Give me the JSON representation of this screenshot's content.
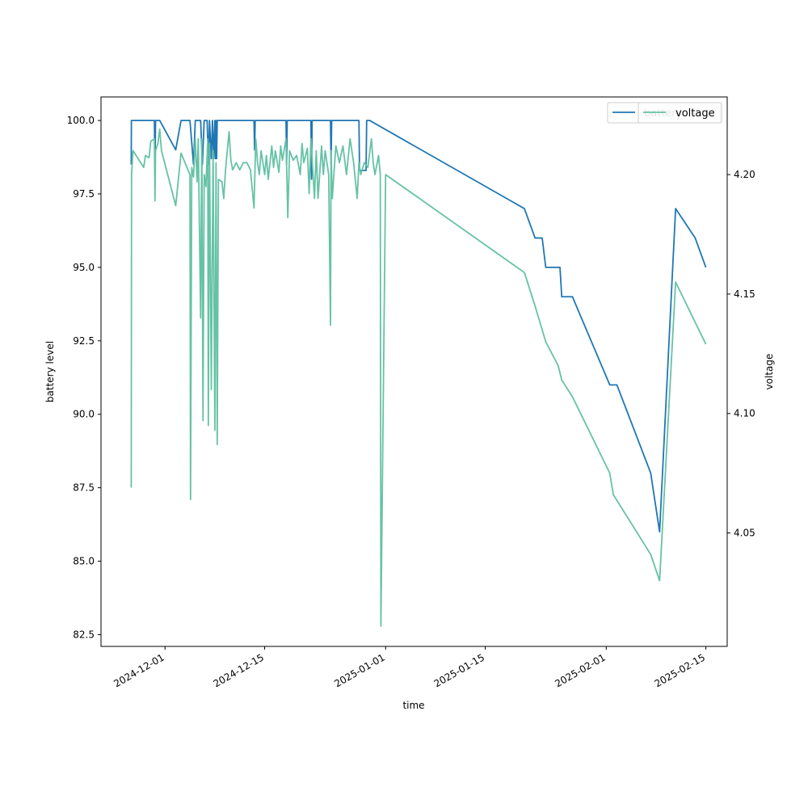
{
  "chart_data": {
    "type": "line",
    "xlabel": "time",
    "ylabel": "battery level",
    "ylabel_right": "voltage",
    "x_range": [
      "2024-11-22",
      "2025-02-18"
    ],
    "ylim": [
      82.1,
      100.8
    ],
    "ylim_right": [
      4.0025,
      4.2325
    ],
    "x_ticks": [
      "2024-12-01",
      "2024-12-15",
      "2025-01-01",
      "2025-01-15",
      "2025-02-01",
      "2025-02-15"
    ],
    "y_ticks": [
      82.5,
      85.0,
      87.5,
      90.0,
      92.5,
      95.0,
      97.5,
      100.0
    ],
    "y_ticks_right": [
      4.05,
      4.1,
      4.15,
      4.2
    ],
    "grid": false,
    "legend_position": "top-right",
    "series": [
      {
        "name": "battery",
        "axis": "left",
        "color": "#1f77b4",
        "points": [
          [
            "2024-11-26T06:00",
            98.5
          ],
          [
            "2024-11-26T06:30",
            100.0
          ],
          [
            "2024-11-29T12:00",
            100.0
          ],
          [
            "2024-11-29T14:00",
            98.5
          ],
          [
            "2024-11-29T16:00",
            100.0
          ],
          [
            "2024-11-30T06:00",
            100.0
          ],
          [
            "2024-12-02T12:00",
            99.0
          ],
          [
            "2024-12-03T06:00",
            100.0
          ],
          [
            "2024-12-04T12:00",
            100.0
          ],
          [
            "2024-12-05T00:00",
            98.5
          ],
          [
            "2024-12-05T06:00",
            100.0
          ],
          [
            "2024-12-06T00:00",
            100.0
          ],
          [
            "2024-12-06T06:00",
            98.5
          ],
          [
            "2024-12-06T12:00",
            100.0
          ],
          [
            "2024-12-06T22:00",
            100.0
          ],
          [
            "2024-12-07T02:00",
            98.5
          ],
          [
            "2024-12-07T06:00",
            100.0
          ],
          [
            "2024-12-07T12:00",
            98.7
          ],
          [
            "2024-12-07T16:00",
            100.0
          ],
          [
            "2024-12-07T20:00",
            98.7
          ],
          [
            "2024-12-08T00:00",
            100.0
          ],
          [
            "2024-12-08T02:00",
            98.7
          ],
          [
            "2024-12-08T04:00",
            100.0
          ],
          [
            "2024-12-08T06:00",
            98.7
          ],
          [
            "2024-12-08T08:00",
            100.0
          ],
          [
            "2024-12-13T12:00",
            100.0
          ],
          [
            "2024-12-13T14:00",
            99.0
          ],
          [
            "2024-12-13T16:00",
            100.0
          ],
          [
            "2024-12-18T00:00",
            100.0
          ],
          [
            "2024-12-18T02:00",
            98.5
          ],
          [
            "2024-12-18T04:00",
            100.0
          ],
          [
            "2024-12-21T12:00",
            100.0
          ],
          [
            "2024-12-21T14:00",
            98.0
          ],
          [
            "2024-12-21T16:00",
            100.0
          ],
          [
            "2024-12-24T06:00",
            100.0
          ],
          [
            "2024-12-24T08:00",
            98.5
          ],
          [
            "2024-12-24T10:00",
            100.0
          ],
          [
            "2024-12-28T06:00",
            100.0
          ],
          [
            "2024-12-28T08:00",
            98.3
          ],
          [
            "2024-12-29T06:00",
            98.3
          ],
          [
            "2024-12-29T08:00",
            100.0
          ],
          [
            "2024-12-29T18:00",
            100.0
          ],
          [
            "2025-01-20T12:00",
            97.0
          ],
          [
            "2025-01-22T00:00",
            96.0
          ],
          [
            "2025-01-23T00:00",
            96.0
          ],
          [
            "2025-01-23T12:00",
            95.0
          ],
          [
            "2025-01-25T12:00",
            95.0
          ],
          [
            "2025-01-25T18:00",
            94.0
          ],
          [
            "2025-01-27T06:00",
            94.0
          ],
          [
            "2025-02-01T12:00",
            91.0
          ],
          [
            "2025-02-02T12:00",
            91.0
          ],
          [
            "2025-02-07T06:00",
            88.0
          ],
          [
            "2025-02-08T12:00",
            86.0
          ],
          [
            "2025-02-10T18:00",
            97.0
          ],
          [
            "2025-02-13T12:00",
            96.0
          ],
          [
            "2025-02-15T00:00",
            95.0
          ]
        ]
      },
      {
        "name": "voltage",
        "axis": "right",
        "color": "#66c2a5",
        "points": [
          [
            "2024-11-26T06:00",
            4.069
          ],
          [
            "2024-11-26T07:00",
            4.2
          ],
          [
            "2024-11-26T12:00",
            4.21
          ],
          [
            "2024-11-28T00:00",
            4.203
          ],
          [
            "2024-11-28T06:00",
            4.208
          ],
          [
            "2024-11-28T18:00",
            4.207
          ],
          [
            "2024-11-29T00:00",
            4.214
          ],
          [
            "2024-11-29T12:00",
            4.215
          ],
          [
            "2024-11-29T14:00",
            4.189
          ],
          [
            "2024-11-29T16:00",
            4.21
          ],
          [
            "2024-11-30T00:00",
            4.213
          ],
          [
            "2024-11-30T06:00",
            4.219
          ],
          [
            "2024-11-30T12:00",
            4.21
          ],
          [
            "2024-12-02T12:00",
            4.187
          ],
          [
            "2024-12-03T06:00",
            4.209
          ],
          [
            "2024-12-04T12:00",
            4.2
          ],
          [
            "2024-12-04T14:00",
            4.064
          ],
          [
            "2024-12-04T18:00",
            4.203
          ],
          [
            "2024-12-05T00:00",
            4.199
          ],
          [
            "2024-12-05T06:00",
            4.215
          ],
          [
            "2024-12-05T12:00",
            4.197
          ],
          [
            "2024-12-05T16:00",
            4.215
          ],
          [
            "2024-12-06T00:00",
            4.14
          ],
          [
            "2024-12-06T04:00",
            4.215
          ],
          [
            "2024-12-06T08:00",
            4.097
          ],
          [
            "2024-12-06T12:00",
            4.2
          ],
          [
            "2024-12-06T18:00",
            4.195
          ],
          [
            "2024-12-07T00:00",
            4.215
          ],
          [
            "2024-12-07T02:00",
            4.095
          ],
          [
            "2024-12-07T06:00",
            4.213
          ],
          [
            "2024-12-07T12:00",
            4.11
          ],
          [
            "2024-12-07T18:00",
            4.21
          ],
          [
            "2024-12-08T00:00",
            4.093
          ],
          [
            "2024-12-08T04:00",
            4.205
          ],
          [
            "2024-12-08T08:00",
            4.087
          ],
          [
            "2024-12-08T12:00",
            4.198
          ],
          [
            "2024-12-09T00:00",
            4.197
          ],
          [
            "2024-12-09T06:00",
            4.19
          ],
          [
            "2024-12-09T12:00",
            4.202
          ],
          [
            "2024-12-10T00:00",
            4.218
          ],
          [
            "2024-12-10T06:00",
            4.206
          ],
          [
            "2024-12-10T12:00",
            4.202
          ],
          [
            "2024-12-11T00:00",
            4.205
          ],
          [
            "2024-12-11T12:00",
            4.202
          ],
          [
            "2024-12-12T00:00",
            4.205
          ],
          [
            "2024-12-12T12:00",
            4.205
          ],
          [
            "2024-12-13T00:00",
            4.202
          ],
          [
            "2024-12-13T12:00",
            4.186
          ],
          [
            "2024-12-13T18:00",
            4.215
          ],
          [
            "2024-12-14T00:00",
            4.205
          ],
          [
            "2024-12-14T06:00",
            4.2
          ],
          [
            "2024-12-14T12:00",
            4.21
          ],
          [
            "2024-12-15T00:00",
            4.2
          ],
          [
            "2024-12-15T06:00",
            4.208
          ],
          [
            "2024-12-15T12:00",
            4.198
          ],
          [
            "2024-12-16T00:00",
            4.212
          ],
          [
            "2024-12-16T06:00",
            4.203
          ],
          [
            "2024-12-16T12:00",
            4.21
          ],
          [
            "2024-12-17T00:00",
            4.201
          ],
          [
            "2024-12-17T06:00",
            4.212
          ],
          [
            "2024-12-17T12:00",
            4.206
          ],
          [
            "2024-12-18T00:00",
            4.215
          ],
          [
            "2024-12-18T06:00",
            4.182
          ],
          [
            "2024-12-18T12:00",
            4.21
          ],
          [
            "2024-12-19T00:00",
            4.206
          ],
          [
            "2024-12-19T12:00",
            4.208
          ],
          [
            "2024-12-20T00:00",
            4.2
          ],
          [
            "2024-12-20T06:00",
            4.213
          ],
          [
            "2024-12-20T12:00",
            4.205
          ],
          [
            "2024-12-21T00:00",
            4.211
          ],
          [
            "2024-12-21T06:00",
            4.192
          ],
          [
            "2024-12-21T12:00",
            4.215
          ],
          [
            "2024-12-22T00:00",
            4.19
          ],
          [
            "2024-12-22T06:00",
            4.21
          ],
          [
            "2024-12-22T12:00",
            4.19
          ],
          [
            "2024-12-23T00:00",
            4.212
          ],
          [
            "2024-12-23T06:00",
            4.2
          ],
          [
            "2024-12-23T12:00",
            4.21
          ],
          [
            "2024-12-24T00:00",
            4.2
          ],
          [
            "2024-12-24T06:00",
            4.137
          ],
          [
            "2024-12-24T08:00",
            4.21
          ],
          [
            "2024-12-24T12:00",
            4.19
          ],
          [
            "2024-12-25T00:00",
            4.212
          ],
          [
            "2024-12-25T12:00",
            4.205
          ],
          [
            "2024-12-26T00:00",
            4.212
          ],
          [
            "2024-12-26T12:00",
            4.2
          ],
          [
            "2024-12-27T00:00",
            4.215
          ],
          [
            "2024-12-27T12:00",
            4.205
          ],
          [
            "2024-12-28T00:00",
            4.19
          ],
          [
            "2024-12-28T06:00",
            4.205
          ],
          [
            "2024-12-28T12:00",
            4.2
          ],
          [
            "2024-12-29T00:00",
            4.205
          ],
          [
            "2024-12-29T12:00",
            4.203
          ],
          [
            "2024-12-30T00:00",
            4.215
          ],
          [
            "2024-12-30T06:00",
            4.205
          ],
          [
            "2024-12-30T12:00",
            4.2
          ],
          [
            "2024-12-31T00:00",
            4.208
          ],
          [
            "2024-12-31T06:00",
            4.2
          ],
          [
            "2024-12-31T08:00",
            4.011
          ],
          [
            "2025-01-01T00:00",
            4.2
          ],
          [
            "2025-01-20T12:00",
            4.159
          ],
          [
            "2025-01-22T00:00",
            4.145
          ],
          [
            "2025-01-23T12:00",
            4.13
          ],
          [
            "2025-01-25T06:00",
            4.12
          ],
          [
            "2025-01-25T18:00",
            4.114
          ],
          [
            "2025-01-27T06:00",
            4.107
          ],
          [
            "2025-02-01T12:00",
            4.075
          ],
          [
            "2025-02-02T00:00",
            4.066
          ],
          [
            "2025-02-07T06:00",
            4.041
          ],
          [
            "2025-02-08T12:00",
            4.03
          ],
          [
            "2025-02-10T18:00",
            4.155
          ],
          [
            "2025-02-15T00:00",
            4.129
          ]
        ]
      }
    ]
  }
}
